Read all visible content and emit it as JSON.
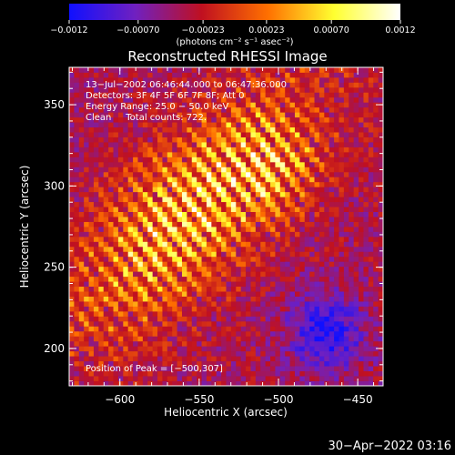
{
  "chart_data": {
    "type": "heatmap",
    "title": "Reconstructed RHESSI Image",
    "xlabel": "Heliocentric X (arcsec)",
    "ylabel": "Heliocentric Y (arcsec)",
    "xlim": [
      -632,
      -434
    ],
    "ylim": [
      177,
      373
    ],
    "xticks": [
      -600,
      -550,
      -500,
      -450
    ],
    "xtick_labels": [
      "−600",
      "−550",
      "−500",
      "−450"
    ],
    "yticks": [
      200,
      250,
      300,
      350
    ],
    "ytick_labels": [
      "200",
      "250",
      "300",
      "350"
    ],
    "colorbar": {
      "min": -0.0012,
      "max": 0.0012,
      "ticks": [
        -0.0012,
        -0.0007,
        -0.00023,
        0.00023,
        0.0007,
        0.0012
      ],
      "tick_labels": [
        "−0.0012",
        "−0.00070",
        "−0.00023",
        "0.00023",
        "0.00070",
        "0.0012"
      ],
      "units_label": "(photons cm⁻² s⁻¹ asec⁻²)",
      "colormap": "rhessi-blue-purple-red-yellow-white",
      "colors": [
        "#1010ff",
        "#7020c0",
        "#c01020",
        "#ff7000",
        "#ffff30",
        "#ffffff"
      ]
    },
    "annotations": [
      "13−Jul−2002 06:46:44.000 to 06:47:36.000",
      "Detectors: 3F 4F 5F 6F 7F 8F; Att 0",
      "Energy Range: 25.0 − 50.0 keV",
      "Clean     Total counts: 722."
    ],
    "peak": {
      "label": "Position of Peak = [−500,307]",
      "x": -500,
      "y": 307
    },
    "source_description": "Elongated diagonal emission region from lower-left to upper-right, strongest near x≈-570..-530, y≈250..350, with striped reconstruction artifacts; negative (blue) residuals at right around x≈-470, y≈210."
  },
  "footer": {
    "timestamp": "30−Apr−2022 03:16"
  }
}
